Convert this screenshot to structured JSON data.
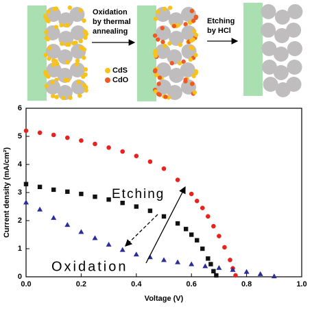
{
  "schematic": {
    "step1": [
      "Oxidation",
      "by thermal",
      "annealing"
    ],
    "step2": [
      "Etching",
      "by HCl"
    ],
    "legend": [
      "CdS",
      "CdO"
    ]
  },
  "chart_data": {
    "type": "scatter",
    "xlabel": "Voltage (V)",
    "ylabel": "Current density (mA/cm²)",
    "annotations": [
      "Etching",
      "Oxidation"
    ],
    "xlim": [
      0,
      1.0
    ],
    "ylim": [
      0,
      6
    ],
    "xticks": [
      {
        "value": 0,
        "label": "0.0"
      },
      {
        "value": 0.2,
        "label": "0.2"
      },
      {
        "value": 0.4,
        "label": "0.4"
      },
      {
        "value": 0.6,
        "label": "0.6"
      },
      {
        "value": 0.8,
        "label": "0.8"
      },
      {
        "value": 1.0,
        "label": "1.0"
      }
    ],
    "yticks": [
      0,
      1,
      2,
      3,
      4,
      5,
      6
    ],
    "series": [
      {
        "color": "#e8231e",
        "marker": "circle",
        "x": [
          0,
          0.05,
          0.1,
          0.15,
          0.2,
          0.25,
          0.3,
          0.35,
          0.4,
          0.45,
          0.5,
          0.55,
          0.6,
          0.62,
          0.64,
          0.66,
          0.68,
          0.7,
          0.72,
          0.74,
          0.75,
          0.76
        ],
        "values": [
          5.2,
          5.13,
          5.05,
          4.95,
          4.85,
          4.73,
          4.6,
          4.46,
          4.3,
          4.1,
          3.85,
          3.45,
          2.95,
          2.7,
          2.45,
          2.15,
          1.8,
          1.45,
          1.05,
          0.6,
          0.3,
          0.05
        ]
      },
      {
        "color": "#111111",
        "marker": "square",
        "x": [
          0,
          0.05,
          0.1,
          0.15,
          0.2,
          0.25,
          0.3,
          0.35,
          0.4,
          0.45,
          0.5,
          0.55,
          0.58,
          0.6,
          0.62,
          0.64,
          0.66,
          0.67,
          0.68,
          0.69
        ],
        "values": [
          3.3,
          3.2,
          3.1,
          3.03,
          2.95,
          2.85,
          2.75,
          2.63,
          2.5,
          2.35,
          2.15,
          1.9,
          1.7,
          1.5,
          1.3,
          1.0,
          0.65,
          0.45,
          0.2,
          0.05
        ]
      },
      {
        "color": "#2b2d9a",
        "marker": "triangle",
        "x": [
          0,
          0.05,
          0.1,
          0.15,
          0.2,
          0.25,
          0.3,
          0.35,
          0.4,
          0.45,
          0.5,
          0.55,
          0.6,
          0.65,
          0.7,
          0.75,
          0.8,
          0.85,
          0.9
        ],
        "values": [
          2.65,
          2.4,
          2.1,
          1.85,
          1.6,
          1.38,
          1.15,
          0.96,
          0.8,
          0.7,
          0.6,
          0.52,
          0.45,
          0.38,
          0.32,
          0.25,
          0.18,
          0.1,
          0.02
        ]
      }
    ]
  }
}
